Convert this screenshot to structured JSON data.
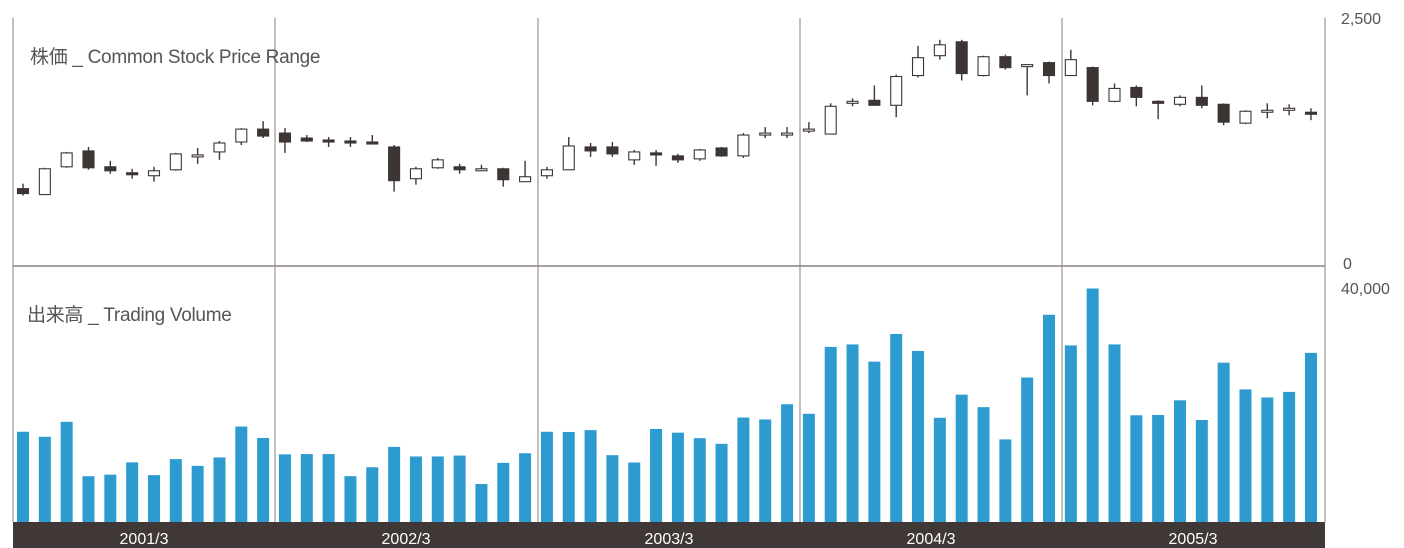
{
  "chart_data": [
    {
      "type": "candlestick",
      "title": "株価 _ Common Stock Price Range",
      "ylim": [
        0,
        2500
      ],
      "y_ticks": [
        "2,500",
        "0"
      ],
      "candles": [
        {
          "o": 780,
          "h": 830,
          "l": 710,
          "c": 730
        },
        {
          "o": 720,
          "h": 990,
          "l": 720,
          "c": 980
        },
        {
          "o": 1000,
          "h": 1150,
          "l": 990,
          "c": 1140
        },
        {
          "o": 1160,
          "h": 1200,
          "l": 970,
          "c": 990
        },
        {
          "o": 1000,
          "h": 1060,
          "l": 930,
          "c": 960
        },
        {
          "o": 940,
          "h": 980,
          "l": 880,
          "c": 930
        },
        {
          "o": 910,
          "h": 1000,
          "l": 850,
          "c": 960
        },
        {
          "o": 970,
          "h": 1140,
          "l": 960,
          "c": 1130
        },
        {
          "o": 1100,
          "h": 1190,
          "l": 1030,
          "c": 1120
        },
        {
          "o": 1150,
          "h": 1260,
          "l": 1070,
          "c": 1240
        },
        {
          "o": 1250,
          "h": 1390,
          "l": 1220,
          "c": 1380
        },
        {
          "o": 1380,
          "h": 1460,
          "l": 1290,
          "c": 1310
        },
        {
          "o": 1340,
          "h": 1390,
          "l": 1140,
          "c": 1250
        },
        {
          "o": 1290,
          "h": 1320,
          "l": 1250,
          "c": 1260
        },
        {
          "o": 1270,
          "h": 1300,
          "l": 1200,
          "c": 1250
        },
        {
          "o": 1260,
          "h": 1300,
          "l": 1200,
          "c": 1250
        },
        {
          "o": 1250,
          "h": 1320,
          "l": 1240,
          "c": 1240
        },
        {
          "o": 1200,
          "h": 1220,
          "l": 750,
          "c": 860
        },
        {
          "o": 880,
          "h": 1000,
          "l": 820,
          "c": 980
        },
        {
          "o": 990,
          "h": 1090,
          "l": 980,
          "c": 1070
        },
        {
          "o": 1000,
          "h": 1030,
          "l": 930,
          "c": 970
        },
        {
          "o": 980,
          "h": 1020,
          "l": 960,
          "c": 980
        },
        {
          "o": 980,
          "h": 990,
          "l": 800,
          "c": 870
        },
        {
          "o": 850,
          "h": 1060,
          "l": 850,
          "c": 900
        },
        {
          "o": 910,
          "h": 1000,
          "l": 880,
          "c": 970
        },
        {
          "o": 970,
          "h": 1300,
          "l": 970,
          "c": 1210
        },
        {
          "o": 1200,
          "h": 1240,
          "l": 1100,
          "c": 1160
        },
        {
          "o": 1200,
          "h": 1250,
          "l": 1100,
          "c": 1130
        },
        {
          "o": 1070,
          "h": 1170,
          "l": 1020,
          "c": 1150
        },
        {
          "o": 1140,
          "h": 1170,
          "l": 1010,
          "c": 1130
        },
        {
          "o": 1110,
          "h": 1130,
          "l": 1040,
          "c": 1070
        },
        {
          "o": 1080,
          "h": 1180,
          "l": 1060,
          "c": 1170
        },
        {
          "o": 1190,
          "h": 1200,
          "l": 1100,
          "c": 1110
        },
        {
          "o": 1110,
          "h": 1340,
          "l": 1090,
          "c": 1320
        },
        {
          "o": 1320,
          "h": 1400,
          "l": 1290,
          "c": 1340
        },
        {
          "o": 1330,
          "h": 1400,
          "l": 1290,
          "c": 1340
        },
        {
          "o": 1370,
          "h": 1450,
          "l": 1340,
          "c": 1380
        },
        {
          "o": 1330,
          "h": 1640,
          "l": 1330,
          "c": 1610
        },
        {
          "o": 1640,
          "h": 1690,
          "l": 1610,
          "c": 1660
        },
        {
          "o": 1670,
          "h": 1820,
          "l": 1640,
          "c": 1620
        },
        {
          "o": 1620,
          "h": 1930,
          "l": 1500,
          "c": 1910
        },
        {
          "o": 1920,
          "h": 2220,
          "l": 1900,
          "c": 2100
        },
        {
          "o": 2120,
          "h": 2280,
          "l": 2080,
          "c": 2230
        },
        {
          "o": 2260,
          "h": 2280,
          "l": 1870,
          "c": 1940
        },
        {
          "o": 1920,
          "h": 2120,
          "l": 1910,
          "c": 2110
        },
        {
          "o": 2110,
          "h": 2130,
          "l": 1980,
          "c": 2000
        },
        {
          "o": 2030,
          "h": 2030,
          "l": 1720,
          "c": 2030
        },
        {
          "o": 2050,
          "h": 2060,
          "l": 1840,
          "c": 1920
        },
        {
          "o": 1920,
          "h": 2180,
          "l": 1920,
          "c": 2080
        },
        {
          "o": 2000,
          "h": 2010,
          "l": 1620,
          "c": 1660
        },
        {
          "o": 1660,
          "h": 1840,
          "l": 1650,
          "c": 1790
        },
        {
          "o": 1800,
          "h": 1820,
          "l": 1610,
          "c": 1700
        },
        {
          "o": 1660,
          "h": 1670,
          "l": 1480,
          "c": 1640
        },
        {
          "o": 1630,
          "h": 1720,
          "l": 1610,
          "c": 1700
        },
        {
          "o": 1700,
          "h": 1820,
          "l": 1590,
          "c": 1620
        },
        {
          "o": 1630,
          "h": 1640,
          "l": 1420,
          "c": 1450
        },
        {
          "o": 1440,
          "h": 1570,
          "l": 1430,
          "c": 1560
        },
        {
          "o": 1560,
          "h": 1640,
          "l": 1490,
          "c": 1570
        },
        {
          "o": 1580,
          "h": 1630,
          "l": 1520,
          "c": 1590
        },
        {
          "o": 1550,
          "h": 1590,
          "l": 1470,
          "c": 1540
        }
      ]
    },
    {
      "type": "bar",
      "title": "出来高 _ Trading Volume",
      "ylim": [
        0,
        40000
      ],
      "y_ticks": [
        "40,000"
      ],
      "color": "#2e9bd0",
      "values": [
        15560,
        14690,
        17270,
        7890,
        8160,
        10280,
        8080,
        10840,
        9680,
        11130,
        16460,
        14490,
        11660,
        11710,
        11710,
        7900,
        9440,
        12950,
        11300,
        11300,
        11450,
        6560,
        10200,
        11850,
        15560,
        15520,
        15840,
        11520,
        10260,
        16040,
        15400,
        14450,
        13480,
        18010,
        17680,
        20300,
        18660,
        30190,
        30620,
        27650,
        32420,
        29490,
        17970,
        21950,
        19800,
        14240,
        24910,
        35730,
        30450,
        40260,
        30620,
        18400,
        18460,
        20980,
        17590,
        27470,
        22860,
        21470,
        22430,
        29160
      ]
    }
  ],
  "x_axis": {
    "labels": [
      "2001/3",
      "2002/3",
      "2003/3",
      "2004/3",
      "2005/3"
    ]
  },
  "colors": {
    "volume_bar": "#2e9bd0",
    "candle_down": "#3d3533",
    "candle_up_fill": "#ffffff",
    "axis_band": "#3f3836",
    "grid_line": "#8a807e"
  }
}
